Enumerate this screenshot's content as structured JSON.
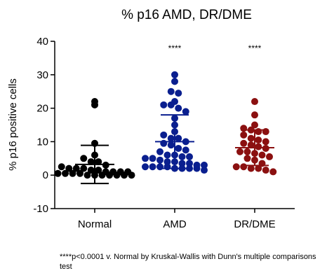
{
  "chart_data": {
    "type": "scatter",
    "title": "% p16 AMD, DR/DME",
    "ylabel": "% p16 positive cells",
    "xlabel": "",
    "ylim": [
      -10,
      40
    ],
    "yticks": [
      -10,
      0,
      10,
      20,
      30,
      40
    ],
    "categories": [
      "Normal",
      "AMD",
      "DR/DME"
    ],
    "grid": false,
    "series": [
      {
        "category": "Normal",
        "color": "#000000",
        "mean": 3.2,
        "sd": 5.7,
        "significance": "",
        "values": [
          22,
          21,
          9.5,
          6,
          5,
          4,
          4,
          3,
          2.5,
          2,
          2,
          2,
          1.5,
          1.5,
          1,
          1,
          1,
          1,
          0.5,
          0.5,
          0.5,
          0.5,
          0,
          0,
          0,
          0,
          0,
          0,
          0
        ]
      },
      {
        "category": "AMD",
        "color": "#0a1f8f",
        "mean": 10,
        "sd": 8,
        "significance": "****",
        "values": [
          30,
          28,
          25,
          24.5,
          22,
          21,
          21,
          20,
          19,
          17,
          15,
          13,
          12,
          11,
          11,
          10,
          9.5,
          9,
          8,
          7.5,
          7,
          6,
          6,
          5.5,
          5.5,
          5,
          5,
          4.5,
          4,
          4,
          3.5,
          3.5,
          3,
          3,
          2.5,
          2.5,
          2.5,
          2.5,
          2,
          2,
          2,
          2,
          1.5
        ]
      },
      {
        "category": "DR/DME",
        "color": "#8b1010",
        "mean": 8.2,
        "sd": 5.3,
        "significance": "****",
        "values": [
          22,
          18,
          15,
          14,
          13.5,
          13,
          13,
          12,
          11,
          10.5,
          10,
          9.5,
          9,
          8.5,
          8,
          7,
          7,
          6.5,
          6,
          5.5,
          5,
          4.5,
          3.5,
          2.5,
          2.5,
          2,
          2,
          1.5,
          1
        ]
      }
    ],
    "footnote": "****p<0.0001 v. Normal by Kruskal-Wallis with Dunn's multiple comparisons test"
  }
}
